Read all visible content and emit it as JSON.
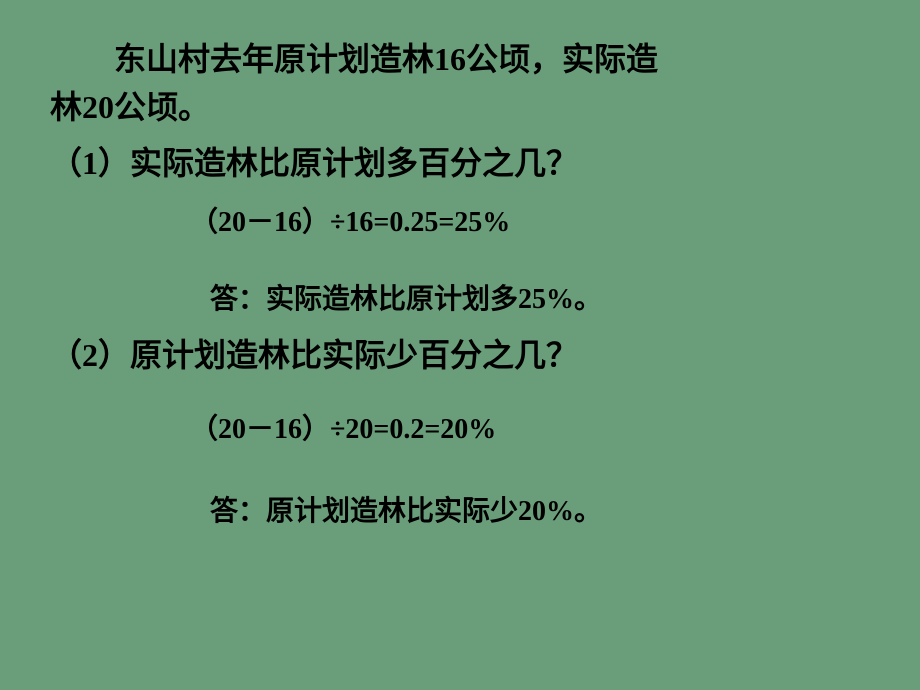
{
  "background_color": "#6a9e7a",
  "text_color": "#000000",
  "intro": {
    "line1": "东山村去年原计划造林16公顷，实际造",
    "line2": "林20公顷。"
  },
  "q1": {
    "question": "（1）实际造林比原计划多百分之几？",
    "calculation": "（20－16）÷16=0.25=25%",
    "answer": "答：实际造林比原计划多25%。"
  },
  "q2": {
    "question": "（2）原计划造林比实际少百分之几？",
    "calculation": "（20－16）÷20=0.2=20%",
    "answer": "答：原计划造林比实际少20%。"
  },
  "font_sizes": {
    "main": 32,
    "sub": 28
  }
}
